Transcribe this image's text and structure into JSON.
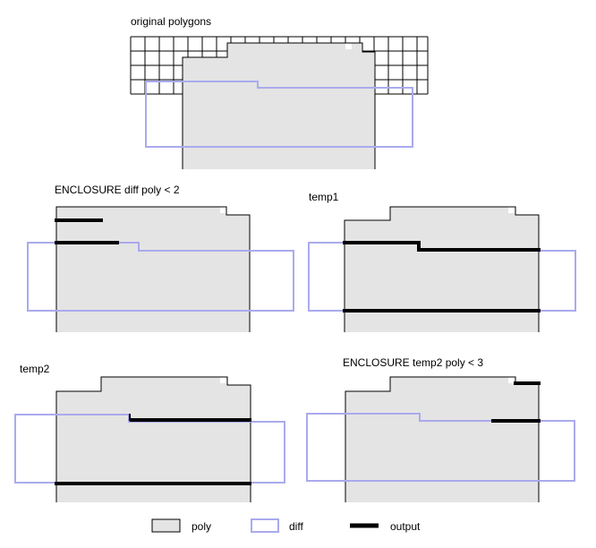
{
  "panels": [
    {
      "id": "original",
      "title": "original polygons"
    },
    {
      "id": "enclosure-diff",
      "title": "ENCLOSURE diff poly < 2"
    },
    {
      "id": "temp1",
      "title": "temp1"
    },
    {
      "id": "temp2",
      "title": "temp2"
    },
    {
      "id": "enclosure-temp2",
      "title": "ENCLOSURE temp2 poly < 3"
    }
  ],
  "legend": {
    "poly": "poly",
    "diff": "diff",
    "output": "output"
  },
  "colors": {
    "poly_fill": "#e4e4e4",
    "poly_stroke": "#000000",
    "diff_stroke": "#aaaaee",
    "output_stroke": "#000000",
    "grid_stroke": "#000000"
  }
}
